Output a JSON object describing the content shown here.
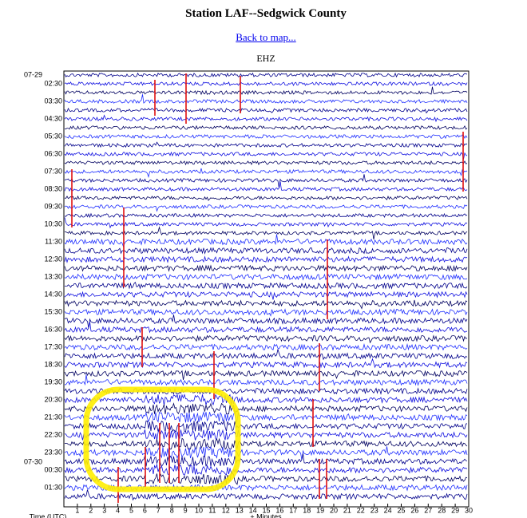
{
  "header": {
    "title": "Station LAF--Sedgwick County",
    "link": "Back to map..."
  },
  "plot": {
    "channel": "EHZ",
    "date_labels": [
      "07-29",
      "07-30"
    ],
    "hour_labels": [
      "02:30",
      "03:30",
      "04:30",
      "05:30",
      "06:30",
      "07:30",
      "08:30",
      "09:30",
      "10:30",
      "11:30",
      "12:30",
      "13:30",
      "14:30",
      "15:30",
      "16:30",
      "17:30",
      "18:30",
      "19:30",
      "20:30",
      "21:30",
      "22:30",
      "23:30",
      "00:30",
      "01:30"
    ],
    "x_ticks": [
      "1",
      "2",
      "3",
      "4",
      "5",
      "6",
      "7",
      "8",
      "9",
      "10",
      "11",
      "12",
      "13",
      "14",
      "15",
      "16",
      "17",
      "18",
      "19",
      "20",
      "21",
      "22",
      "23",
      "24",
      "25",
      "26",
      "27",
      "28",
      "29",
      "30"
    ],
    "y_label": "Time (UTC)",
    "x_label": "+ Minutes"
  }
}
